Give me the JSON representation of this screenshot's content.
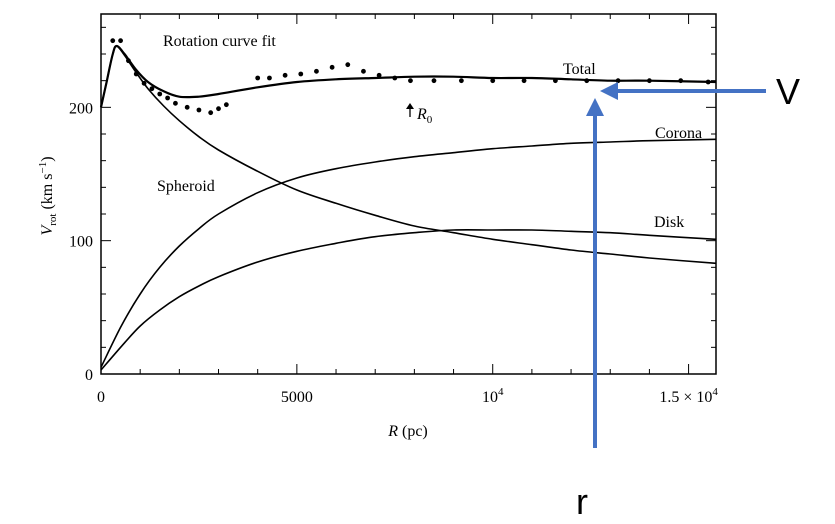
{
  "chart_data": {
    "type": "line",
    "title": "Rotation curve fit",
    "xlabel": "R (pc)",
    "ylabel": "V_rot (km s^-1)",
    "xlim": [
      0,
      15700
    ],
    "ylim": [
      0,
      270
    ],
    "x_ticks": [
      {
        "value": 0,
        "label": "0"
      },
      {
        "value": 5000,
        "label": "5000"
      },
      {
        "value": 10000,
        "label": "10^4"
      },
      {
        "value": 15000,
        "label": "1.5 × 10^4"
      }
    ],
    "y_ticks": [
      {
        "value": 0,
        "label": "0"
      },
      {
        "value": 100,
        "label": "100"
      },
      {
        "value": 200,
        "label": "200"
      }
    ],
    "series": [
      {
        "name": "Total",
        "x": [
          0,
          150,
          300,
          400,
          600,
          900,
          1200,
          1600,
          2000,
          2500,
          3000,
          4000,
          5000,
          6000,
          7000,
          8000,
          9000,
          10000,
          11000,
          12000,
          13000,
          14000,
          15700
        ],
        "y": [
          200,
          220,
          240,
          246,
          240,
          228,
          219,
          212,
          208,
          208,
          210,
          215,
          219,
          221,
          222,
          223,
          223,
          222,
          222,
          221,
          220,
          220,
          219
        ]
      },
      {
        "name": "Spheroid",
        "x": [
          0,
          150,
          300,
          400,
          600,
          900,
          1200,
          1600,
          2000,
          2500,
          3000,
          4000,
          5000,
          6000,
          7000,
          8000,
          9000,
          10000,
          11000,
          12000,
          13000,
          14000,
          15700
        ],
        "y": [
          200,
          220,
          240,
          246,
          239,
          226,
          214,
          201,
          190,
          178,
          168,
          152,
          138,
          128,
          119,
          111,
          106,
          101,
          97,
          93,
          90,
          87,
          83
        ]
      },
      {
        "name": "Corona",
        "x": [
          0,
          500,
          1000,
          1500,
          2000,
          2500,
          3000,
          4000,
          5000,
          6000,
          7000,
          8000,
          9000,
          10000,
          11000,
          12000,
          13000,
          14000,
          15700
        ],
        "y": [
          5,
          35,
          60,
          80,
          96,
          109,
          120,
          136,
          147,
          154,
          159,
          163,
          166,
          169,
          171,
          173,
          174,
          175,
          176
        ]
      },
      {
        "name": "Disk",
        "x": [
          0,
          500,
          1000,
          1500,
          2000,
          2500,
          3000,
          4000,
          5000,
          6000,
          7000,
          8000,
          9000,
          10000,
          11000,
          12000,
          13000,
          14000,
          15700
        ],
        "y": [
          3,
          20,
          36,
          48,
          58,
          66,
          73,
          84,
          92,
          98,
          103,
          106,
          108,
          108,
          108,
          107,
          106,
          104,
          101
        ]
      }
    ],
    "observed_points": {
      "x": [
        300,
        500,
        700,
        900,
        1100,
        1300,
        1500,
        1700,
        1900,
        2200,
        2500,
        2800,
        3000,
        3200,
        4000,
        4300,
        4700,
        5100,
        5500,
        5900,
        6300,
        6700,
        7100,
        7500,
        7900,
        8500,
        9200,
        10000,
        10800,
        11600,
        12400,
        13200,
        14000,
        14800,
        15500
      ],
      "y": [
        250,
        250,
        235,
        225,
        218,
        214,
        210,
        207,
        203,
        200,
        198,
        196,
        199,
        202,
        222,
        222,
        224,
        225,
        227,
        230,
        232,
        227,
        224,
        222,
        220,
        220,
        220,
        220,
        220,
        220,
        220,
        220,
        220,
        220,
        219
      ]
    },
    "annotations": [
      {
        "text": "Rotation curve fit"
      },
      {
        "text": "Total"
      },
      {
        "text": "Corona"
      },
      {
        "text": "Spheroid"
      },
      {
        "text": "Disk"
      },
      {
        "text": "R0"
      }
    ]
  },
  "overlay": {
    "v_label": "V",
    "r_label": "r",
    "color": "#4472C4"
  }
}
